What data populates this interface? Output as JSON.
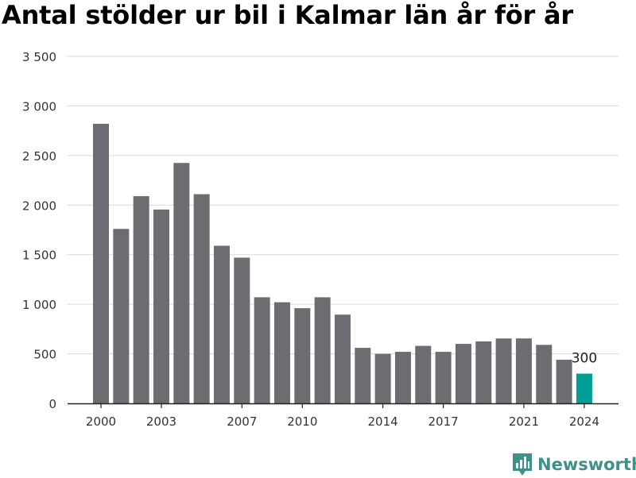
{
  "chart_data": {
    "type": "bar",
    "title": "Antal stölder ur bil i Kalmar län år för år",
    "x": [
      2000,
      2001,
      2002,
      2003,
      2004,
      2005,
      2006,
      2007,
      2008,
      2009,
      2010,
      2011,
      2012,
      2013,
      2014,
      2015,
      2016,
      2017,
      2018,
      2019,
      2020,
      2021,
      2022,
      2023,
      2024
    ],
    "values": [
      2820,
      1760,
      2090,
      1955,
      2425,
      2110,
      1590,
      1470,
      1070,
      1020,
      960,
      1070,
      895,
      560,
      500,
      520,
      580,
      520,
      600,
      625,
      655,
      655,
      590,
      440,
      300
    ],
    "xticks": [
      "2000",
      "2003",
      "2007",
      "2010",
      "2014",
      "2017",
      "2021",
      "2024"
    ],
    "yticks": [
      0,
      500,
      1000,
      1500,
      2000,
      2500,
      3000,
      3500
    ],
    "ytick_labels": [
      "0",
      "500",
      "1 000",
      "1 500",
      "2 000",
      "2 500",
      "3 000",
      "3 500"
    ],
    "ylim": [
      0,
      3500
    ],
    "xlabel": "",
    "ylabel": "",
    "grid": true,
    "legend": "none",
    "highlight": {
      "x": 2024,
      "label": "300"
    },
    "colors": {
      "bar": "#6d6c71",
      "highlight": "#009e94",
      "grid": "#d9d9d9",
      "axis": "#222222"
    }
  },
  "brand": {
    "name": "Newsworthy",
    "color": "#3d9189"
  }
}
